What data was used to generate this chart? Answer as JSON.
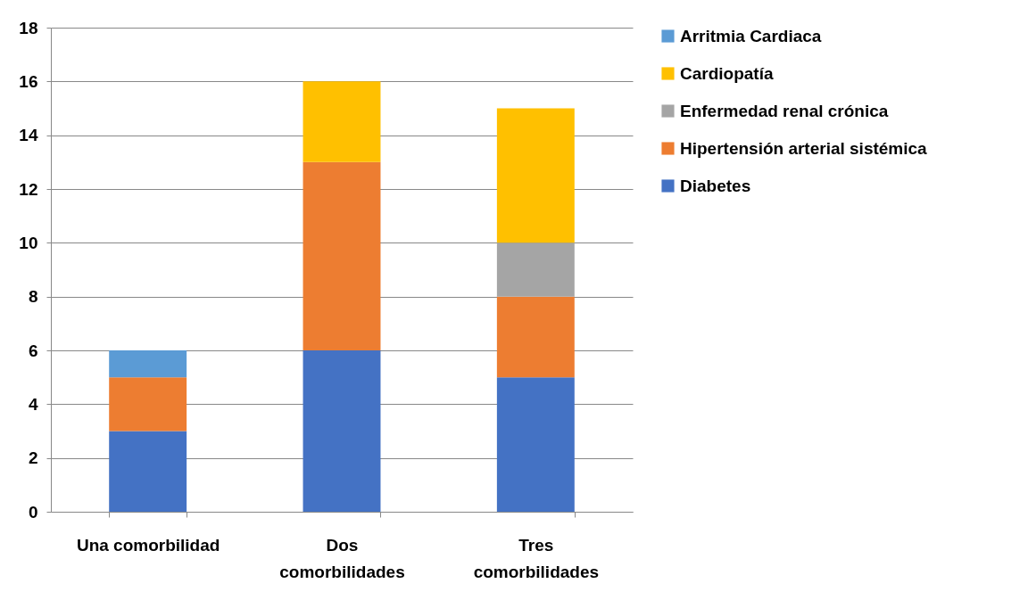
{
  "chart_data": {
    "type": "bar",
    "stacked": true,
    "categories": [
      "Una comorbilidad",
      "Dos comorbilidades",
      "Tres comorbilidades"
    ],
    "series": [
      {
        "name": "Diabetes",
        "color": "#4472c4",
        "values": [
          3,
          6,
          5
        ]
      },
      {
        "name": "Hipertensión arterial sistémica",
        "color": "#ed7d31",
        "values": [
          2,
          7,
          3
        ]
      },
      {
        "name": "Enfermedad renal crónica",
        "color": "#a5a5a5",
        "values": [
          null,
          null,
          2
        ]
      },
      {
        "name": "Cardiopatía",
        "color": "#ffc000",
        "values": [
          null,
          3,
          5
        ]
      },
      {
        "name": "Arritmia Cardiaca",
        "color": "#5b9bd5",
        "values": [
          1,
          null,
          null
        ]
      }
    ],
    "ylim": [
      0,
      18
    ],
    "yticks": [
      0,
      2,
      4,
      6,
      8,
      10,
      12,
      14,
      16,
      18
    ],
    "grid": "y",
    "legend": "right"
  }
}
